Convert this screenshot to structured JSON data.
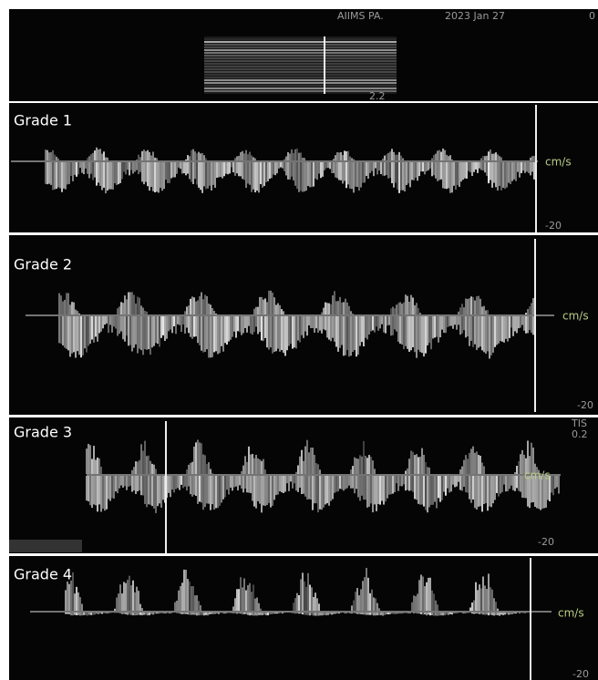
{
  "header": {
    "site": "AIIMS PA.",
    "date": "2023 Jan 27",
    "cut_text": "0",
    "depth": "2.2"
  },
  "panels": [
    {
      "label": "Grade 1",
      "unit": "cm/s",
      "scale": "-20"
    },
    {
      "label": "Grade 2",
      "unit": "cm/s",
      "scale": "-20"
    },
    {
      "label": "Grade 3",
      "unit": "cm/s",
      "scale": "-20",
      "tis_label": "TIS",
      "tis_value": "0.2"
    },
    {
      "label": "Grade 4",
      "unit": "cm/s",
      "scale": "-20"
    }
  ]
}
